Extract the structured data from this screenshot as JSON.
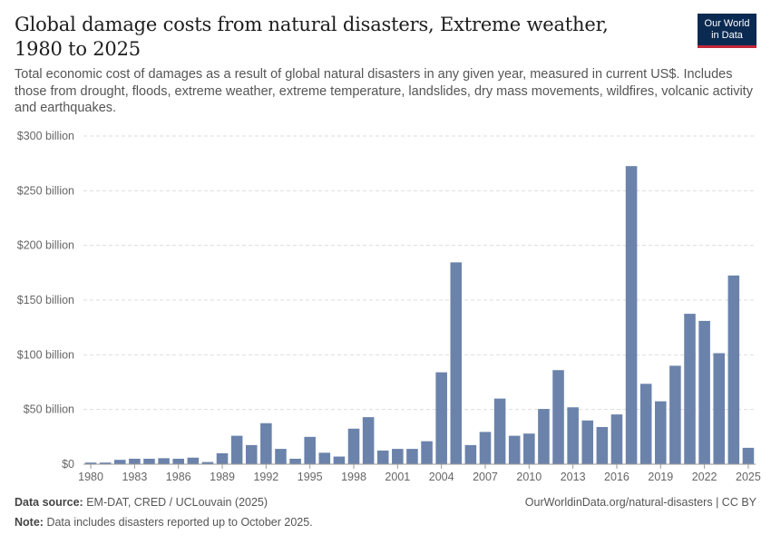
{
  "header": {
    "title": "Global damage costs from natural disasters, Extreme weather, 1980 to 2025",
    "subtitle": "Total economic cost of damages as a result of global natural disasters in any given year, measured in current US$. Includes those from drought, floods, extreme weather, extreme temperature, landslides, dry mass movements, wildfires, volcanic activity and earthquakes."
  },
  "logo": {
    "line1": "Our World",
    "line2": "in Data"
  },
  "footer": {
    "source_label": "Data source:",
    "source_text": "EM-DAT, CRED / UCLouvain (2025)",
    "url_text": "OurWorldinData.org/natural-disasters | CC BY",
    "note_label": "Note:",
    "note_text": "Data includes disasters reported up to October 2025."
  },
  "chart_data": {
    "type": "bar",
    "title": "Global damage costs from natural disasters, Extreme weather, 1980 to 2025",
    "xlabel": "",
    "ylabel": "",
    "ylim": [
      0,
      300
    ],
    "y_unit": "billion US$",
    "grid": "horizontal dashed",
    "bar_color": "#6b83ab",
    "y_ticks": [
      {
        "value": 0,
        "label": "$0"
      },
      {
        "value": 50,
        "label": "$50 billion"
      },
      {
        "value": 100,
        "label": "$100 billion"
      },
      {
        "value": 150,
        "label": "$150 billion"
      },
      {
        "value": 200,
        "label": "$200 billion"
      },
      {
        "value": 250,
        "label": "$250 billion"
      },
      {
        "value": 300,
        "label": "$300 billion"
      }
    ],
    "x_ticks": [
      "1980",
      "1983",
      "1986",
      "1989",
      "1992",
      "1995",
      "1998",
      "2001",
      "2004",
      "2007",
      "2010",
      "2013",
      "2016",
      "2019",
      "2022",
      "2025"
    ],
    "categories": [
      "1980",
      "1981",
      "1982",
      "1983",
      "1984",
      "1985",
      "1986",
      "1987",
      "1988",
      "1989",
      "1990",
      "1991",
      "1992",
      "1993",
      "1994",
      "1995",
      "1996",
      "1997",
      "1998",
      "1999",
      "2000",
      "2001",
      "2002",
      "2003",
      "2004",
      "2005",
      "2006",
      "2007",
      "2008",
      "2009",
      "2010",
      "2011",
      "2012",
      "2013",
      "2014",
      "2015",
      "2016",
      "2017",
      "2018",
      "2019",
      "2020",
      "2021",
      "2022",
      "2023",
      "2024",
      "2025"
    ],
    "values": [
      1.5,
      1.5,
      4,
      5,
      5,
      5.5,
      5,
      6,
      2,
      10,
      26,
      17.5,
      37.5,
      14,
      5,
      25,
      10.5,
      7,
      32.5,
      43,
      12.5,
      14,
      14,
      21,
      84,
      184.5,
      17.5,
      29.5,
      60,
      26,
      28,
      50.5,
      86,
      52,
      40,
      34,
      45.5,
      272.5,
      73.5,
      57.5,
      90,
      137.5,
      131,
      101.5,
      172.5,
      15
    ]
  }
}
